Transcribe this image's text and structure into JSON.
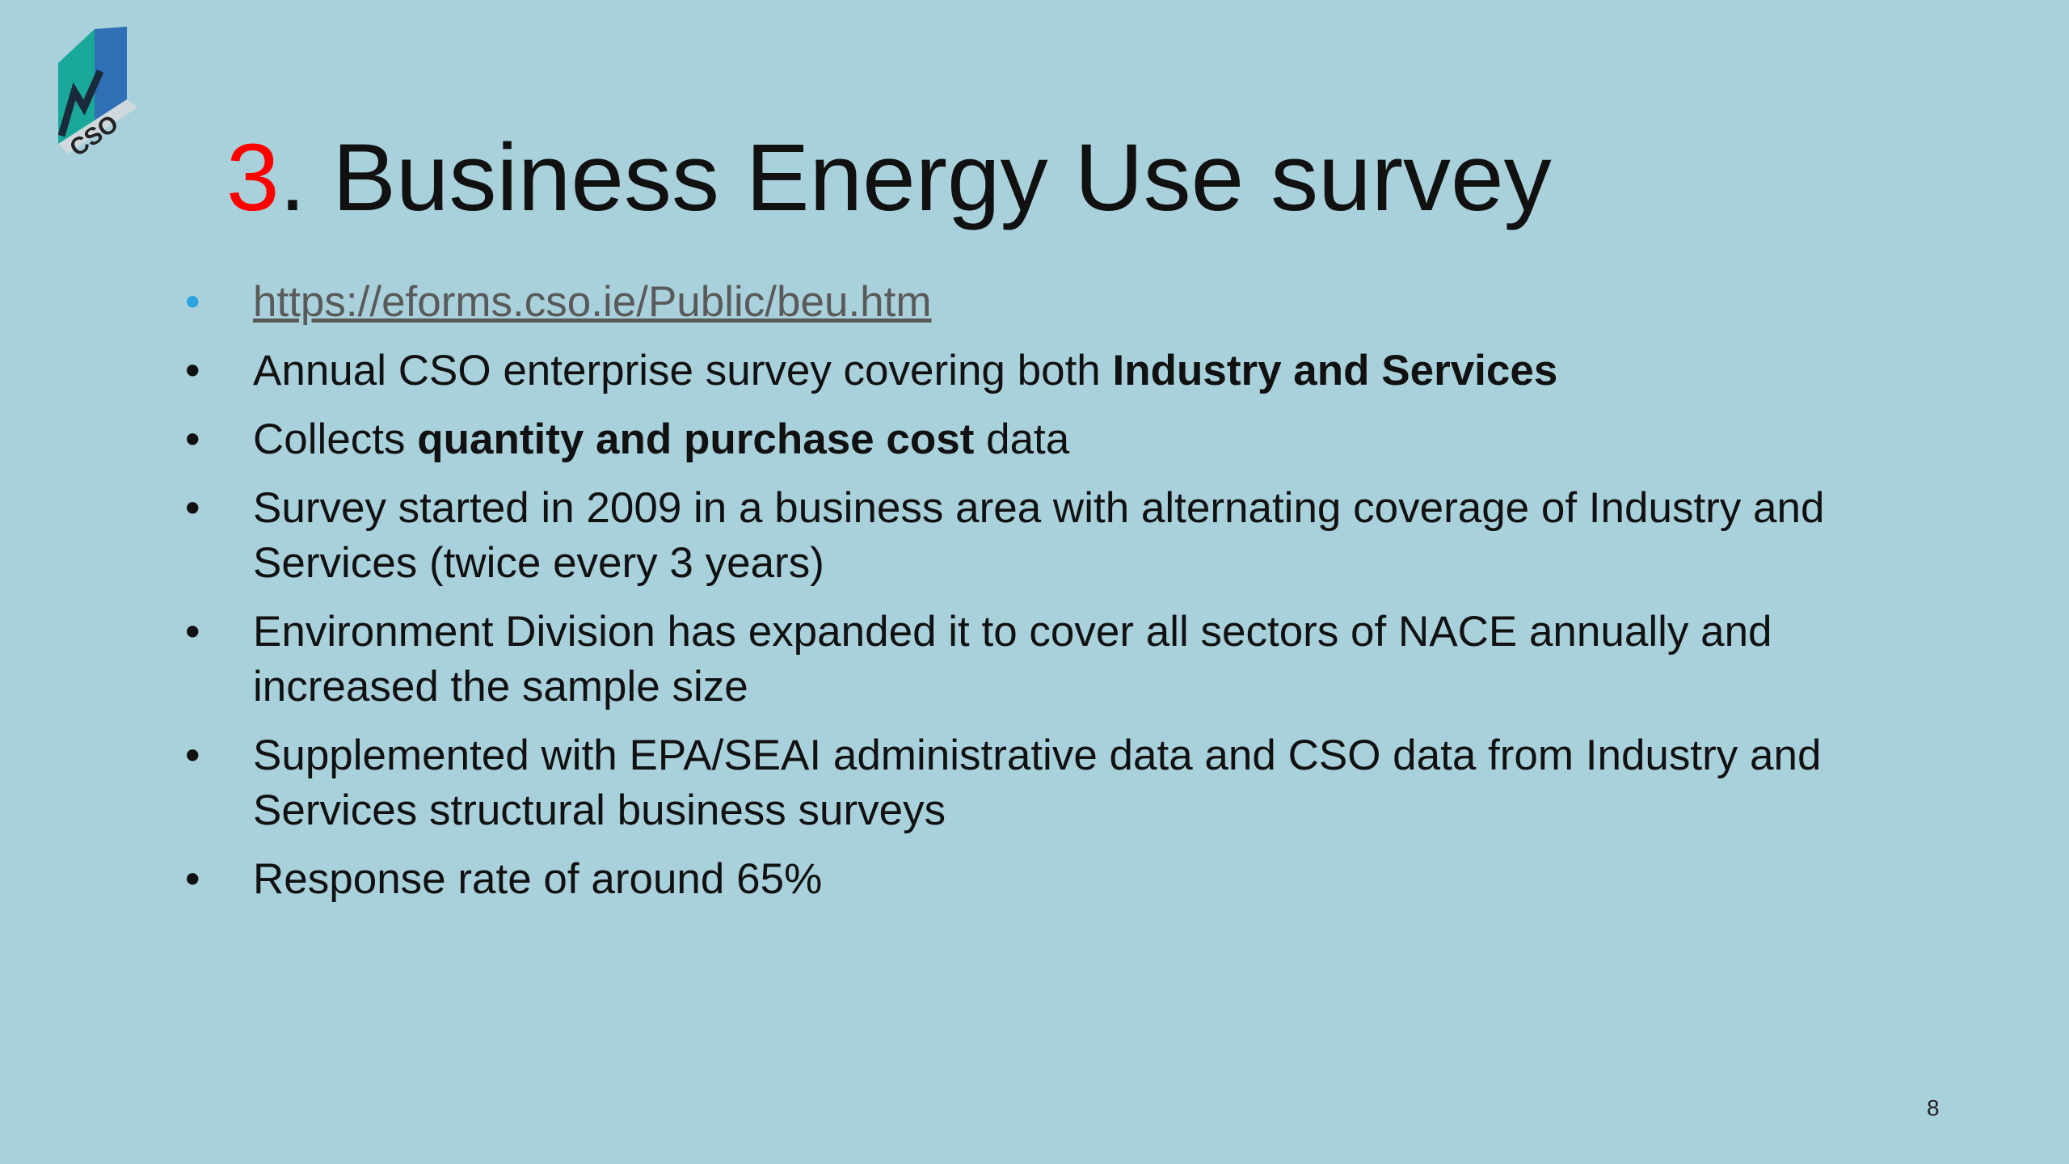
{
  "logo": {
    "text": "CSO"
  },
  "title": {
    "number": "3",
    "text": ". Business Energy Use survey"
  },
  "bullets": [
    {
      "runs": [
        {
          "text": "https://eforms.cso.ie/Public/beu.htm",
          "link": true
        }
      ]
    },
    {
      "runs": [
        {
          "text": "Annual CSO enterprise survey covering both "
        },
        {
          "text": "Industry and Services",
          "bold": true
        }
      ]
    },
    {
      "runs": [
        {
          "text": "Collects "
        },
        {
          "text": "quantity and purchase cost",
          "bold": true
        },
        {
          "text": " data"
        }
      ]
    },
    {
      "runs": [
        {
          "text": "Survey started in 2009 in a business area with alternating coverage of Industry and Services (twice every 3 years)"
        }
      ]
    },
    {
      "runs": [
        {
          "text": "Environment Division has expanded it to cover all sectors of NACE annually and increased the sample size"
        }
      ]
    },
    {
      "runs": [
        {
          "text": "Supplemented with EPA/SEAI administrative data and CSO data from Industry and Services structural business surveys"
        }
      ]
    },
    {
      "runs": [
        {
          "text": "Response rate of around 65%"
        }
      ]
    }
  ],
  "page_number": "8"
}
